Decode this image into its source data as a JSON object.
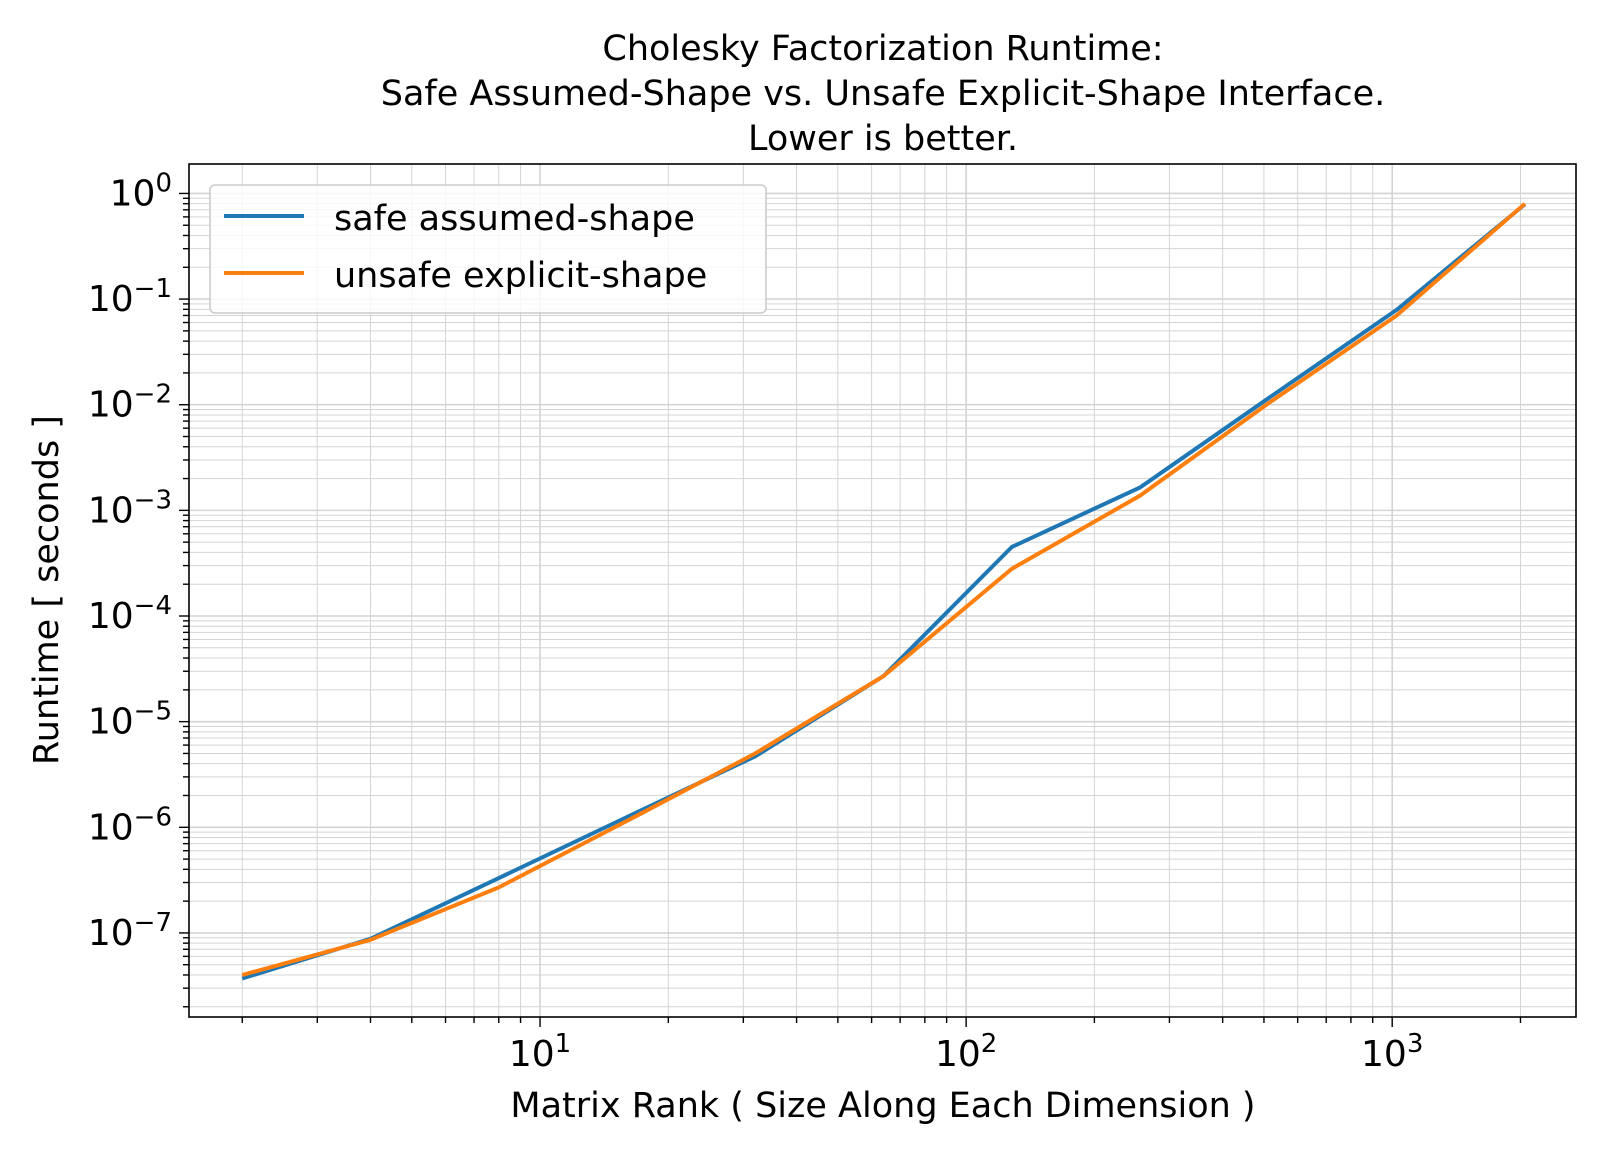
{
  "chart_data": {
    "type": "line",
    "title_lines": [
      "Cholesky Factorization Runtime:",
      "Safe Assumed-Shape vs. Unsafe Explicit-Shape Interface.",
      "Lower is better."
    ],
    "xlabel": "Matrix Rank ( Size Along Each Dimension )",
    "ylabel": "Runtime [ seconds ]",
    "x_scale": "log",
    "y_scale": "log",
    "xlim": [
      1.5,
      2700
    ],
    "ylim": [
      1.6e-08,
      1.9
    ],
    "grid": "major and minor",
    "legend_position": "top-left",
    "x_ticks": [
      {
        "value": 10,
        "base": "10",
        "exp": "1"
      },
      {
        "value": 100,
        "base": "10",
        "exp": "2"
      },
      {
        "value": 1000,
        "base": "10",
        "exp": "3"
      }
    ],
    "y_ticks": [
      {
        "value": 1,
        "base": "10",
        "exp": "0"
      },
      {
        "value": 0.1,
        "base": "10",
        "exp": "−1"
      },
      {
        "value": 0.01,
        "base": "10",
        "exp": "−2"
      },
      {
        "value": 0.001,
        "base": "10",
        "exp": "−3"
      },
      {
        "value": 0.0001,
        "base": "10",
        "exp": "−4"
      },
      {
        "value": 1e-05,
        "base": "10",
        "exp": "−5"
      },
      {
        "value": 1e-06,
        "base": "10",
        "exp": "−6"
      },
      {
        "value": 1e-07,
        "base": "10",
        "exp": "−7"
      }
    ],
    "x": [
      2,
      4,
      8,
      16,
      32,
      64,
      128,
      256,
      512,
      1024,
      2048
    ],
    "series": [
      {
        "name": "safe assumed-shape",
        "color": "#1f77b4",
        "values": [
          3.7e-08,
          8.8e-08,
          3.3e-07,
          1.25e-06,
          4.7e-06,
          2.7e-05,
          0.00045,
          0.00165,
          0.0115,
          0.079,
          0.79
        ]
      },
      {
        "name": "unsafe explicit-shape",
        "color": "#ff7f0e",
        "values": [
          4e-08,
          8.6e-08,
          2.7e-07,
          1.15e-06,
          5e-06,
          2.7e-05,
          0.00028,
          0.00138,
          0.0103,
          0.07,
          0.8
        ]
      }
    ]
  }
}
